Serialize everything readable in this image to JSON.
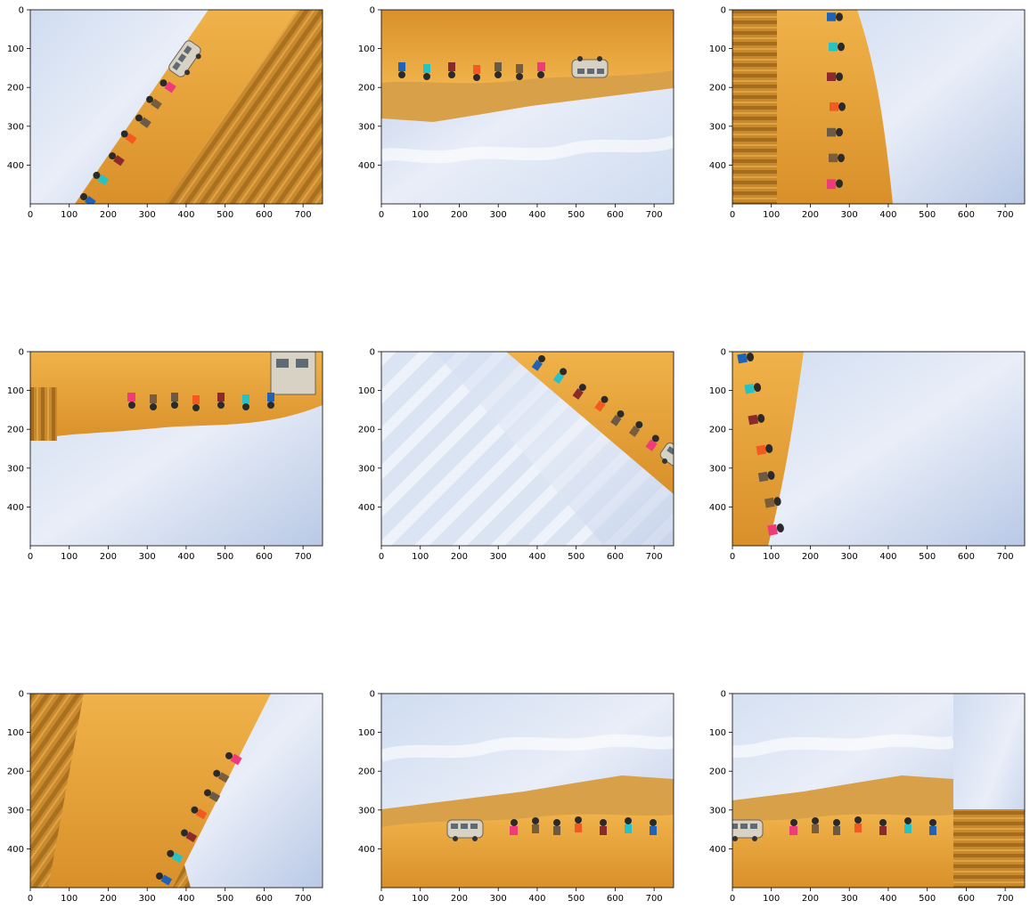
{
  "figure": {
    "layout": "3x3 grid of image subplots",
    "x_ticks": [
      "0",
      "100",
      "200",
      "300",
      "400",
      "500",
      "600",
      "700"
    ],
    "y_ticks": [
      "0",
      "100",
      "200",
      "300",
      "400"
    ],
    "axis_limits": {
      "x": [
        0,
        750
      ],
      "y": [
        500,
        0
      ]
    },
    "panels": [
      {
        "id": "r1c1",
        "content": "augmented image: desert dune group jump, rotated ~ -60°"
      },
      {
        "id": "r1c2",
        "content": "augmented image: flipped vertically (upside-down)"
      },
      {
        "id": "r1c3",
        "content": "augmented image: rotated ~ -90°, dune on left, sky on right"
      },
      {
        "id": "r2c1",
        "content": "augmented image: upside-down with edge-pixel fill"
      },
      {
        "id": "r2c2",
        "content": "augmented image: rotated ~ 135°, sky on left"
      },
      {
        "id": "r2c3",
        "content": "augmented image: rotated ~ 90°, strip of dune on left"
      },
      {
        "id": "r3c1",
        "content": "augmented image: rotated ~ 60°, dune on left, sky on right"
      },
      {
        "id": "r3c2",
        "content": "augmented image: original orientation, van on left"
      },
      {
        "id": "r3c3",
        "content": "augmented image: shifted left, edge fill on right"
      }
    ]
  }
}
